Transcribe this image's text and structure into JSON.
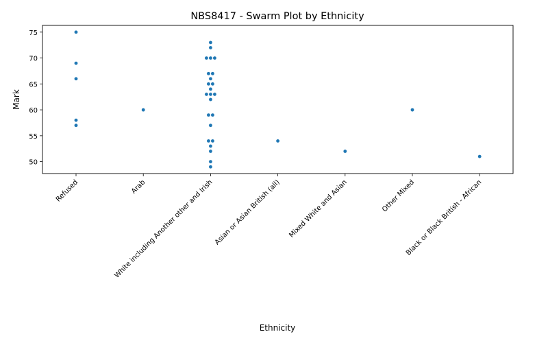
{
  "chart_data": {
    "type": "scatter",
    "title": "NBS8417 - Swarm Plot by Ethnicity",
    "xlabel": "Ethnicity",
    "ylabel": "Mark",
    "categories": [
      "Refused",
      "Arab",
      "White including Another other and Irish",
      "Asian or Asian British (all)",
      "Mixed White and Asian",
      "Other Mixed",
      "Black or Black British - African"
    ],
    "ylim": [
      47.7,
      76.3
    ],
    "yticks": [
      50,
      55,
      60,
      65,
      70,
      75
    ],
    "grid": false,
    "point_color": "#1f77b4",
    "points": [
      {
        "category": "Refused",
        "values": [
          75,
          69,
          66,
          58,
          57
        ]
      },
      {
        "category": "Arab",
        "values": [
          60
        ]
      },
      {
        "category": "White including Another other and Irish",
        "values": [
          73,
          72,
          70,
          70,
          70,
          67,
          67,
          66,
          65,
          65,
          64,
          63,
          63,
          63,
          62,
          59,
          59,
          57,
          54,
          54,
          53,
          52,
          50,
          49
        ]
      },
      {
        "category": "Asian or Asian British (all)",
        "values": [
          54
        ]
      },
      {
        "category": "Mixed White and Asian",
        "values": [
          52
        ]
      },
      {
        "category": "Other Mixed",
        "values": [
          60
        ]
      },
      {
        "category": "Black or Black British - African",
        "values": [
          51
        ]
      }
    ]
  }
}
